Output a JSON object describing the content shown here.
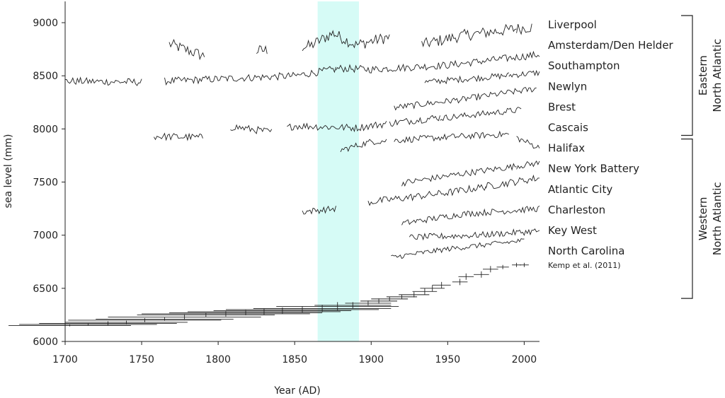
{
  "chart_data": {
    "type": "line",
    "xlabel": "Year (AD)",
    "ylabel": "sea level (mm)",
    "xlim": [
      1700,
      2010
    ],
    "ylim": [
      6000,
      9200
    ],
    "x_ticks": [
      1700,
      1750,
      1800,
      1850,
      1900,
      1950,
      2000
    ],
    "y_ticks": [
      6000,
      6500,
      7000,
      7500,
      8000,
      8500,
      9000
    ],
    "highlight": {
      "x_start": 1865,
      "x_end": 1892,
      "color": "#d6fbf6"
    },
    "line_color": "#222222",
    "series": [
      {
        "name": "Liverpool",
        "level": 8760,
        "amp": 55,
        "segments": [
          [
            1768,
            1791
          ],
          [
            1825,
            1832
          ],
          [
            1855,
            1876
          ],
          [
            1876,
            1912
          ],
          [
            1933,
            1995
          ],
          [
            1995,
            2005
          ]
        ],
        "trend": [
          [
            1768,
            8800
          ],
          [
            1790,
            8690
          ],
          [
            1830,
            8740
          ],
          [
            1860,
            8780
          ],
          [
            1875,
            8900
          ],
          [
            1890,
            8790
          ],
          [
            1910,
            8860
          ],
          [
            1935,
            8800
          ],
          [
            1960,
            8880
          ],
          [
            2005,
            8960
          ]
        ]
      },
      {
        "name": "Amsterdam/Den Helder",
        "level": 8560,
        "amp": 35,
        "segments": [
          [
            1700,
            1750
          ],
          [
            1765,
            1877
          ],
          [
            1877,
            2010
          ]
        ],
        "trend": [
          [
            1700,
            8450
          ],
          [
            1750,
            8440
          ],
          [
            1800,
            8470
          ],
          [
            1850,
            8500
          ],
          [
            1880,
            8570
          ],
          [
            1900,
            8560
          ],
          [
            1950,
            8600
          ],
          [
            2010,
            8700
          ]
        ]
      },
      {
        "name": "Southampton",
        "level": 8440,
        "amp": 30,
        "segments": [
          [
            1935,
            1990
          ],
          [
            1990,
            2010
          ]
        ],
        "trend": [
          [
            1935,
            8440
          ],
          [
            1970,
            8480
          ],
          [
            2010,
            8530
          ]
        ]
      },
      {
        "name": "Newlyn",
        "level": 8290,
        "amp": 30,
        "segments": [
          [
            1915,
            1960
          ],
          [
            1960,
            2008
          ]
        ],
        "trend": [
          [
            1915,
            8200
          ],
          [
            1960,
            8280
          ],
          [
            2008,
            8380
          ]
        ]
      },
      {
        "name": "Brest",
        "level": 8120,
        "amp": 35,
        "segments": [
          [
            1758,
            1790
          ],
          [
            1808,
            1835
          ],
          [
            1845,
            1910
          ],
          [
            1912,
            1945
          ]
        ],
        "trend": [
          [
            1758,
            7930
          ],
          [
            1790,
            7920
          ],
          [
            1810,
            8020
          ],
          [
            1835,
            7970
          ],
          [
            1850,
            8030
          ],
          [
            1890,
            8010
          ],
          [
            1910,
            8050
          ],
          [
            1945,
            8110
          ]
        ]
      },
      {
        "name": "Cascais",
        "level": 8000,
        "amp": 30,
        "segments": [
          [
            1945,
            1998
          ]
        ],
        "trend": [
          [
            1945,
            8100
          ],
          [
            1998,
            8180
          ]
        ]
      },
      {
        "name": "Halifax",
        "level": 7900,
        "amp": 30,
        "segments": [
          [
            1880,
            1910
          ],
          [
            1915,
            1958
          ],
          [
            1958,
            1990
          ],
          [
            1995,
            2010
          ]
        ],
        "trend": [
          [
            1880,
            7800
          ],
          [
            1900,
            7880
          ],
          [
            1958,
            7930
          ],
          [
            1990,
            7950
          ],
          [
            2010,
            7820
          ]
        ]
      },
      {
        "name": "New York Battery",
        "level": 7560,
        "amp": 30,
        "segments": [
          [
            1920,
            1995
          ],
          [
            1995,
            2010
          ]
        ],
        "trend": [
          [
            1920,
            7490
          ],
          [
            1960,
            7580
          ],
          [
            2010,
            7680
          ]
        ]
      },
      {
        "name": "Atlantic City",
        "level": 7420,
        "amp": 35,
        "segments": [
          [
            1898,
            1975
          ],
          [
            1975,
            2010
          ]
        ],
        "trend": [
          [
            1898,
            7310
          ],
          [
            1950,
            7400
          ],
          [
            2010,
            7540
          ]
        ]
      },
      {
        "name": "Charleston",
        "level": 7200,
        "amp": 30,
        "segments": [
          [
            1855,
            1877
          ],
          [
            1920,
            2010
          ]
        ],
        "trend": [
          [
            1855,
            7220
          ],
          [
            1877,
            7250
          ],
          [
            1920,
            7110
          ],
          [
            1960,
            7200
          ],
          [
            2010,
            7250
          ]
        ]
      },
      {
        "name": "Key West",
        "level": 7030,
        "amp": 30,
        "segments": [
          [
            1925,
            2010
          ]
        ],
        "trend": [
          [
            1925,
            6980
          ],
          [
            1970,
            7000
          ],
          [
            2010,
            7040
          ]
        ]
      },
      {
        "name": "North Carolina",
        "level": 6800,
        "amp": 25,
        "segments": [
          [
            1913,
            2000
          ]
        ],
        "trend": [
          [
            1913,
            6790
          ],
          [
            1950,
            6870
          ],
          [
            2000,
            6950
          ]
        ]
      }
    ],
    "proxy_series": {
      "name": "North Carolina",
      "source": "Kemp et al. (2011)",
      "points": [
        [
          1703,
          6150,
          40,
          8
        ],
        [
          1715,
          6160,
          45,
          10
        ],
        [
          1728,
          6170,
          45,
          20
        ],
        [
          1740,
          6180,
          40,
          15
        ],
        [
          1752,
          6200,
          50,
          20
        ],
        [
          1765,
          6210,
          45,
          15
        ],
        [
          1778,
          6230,
          50,
          25
        ],
        [
          1792,
          6250,
          45,
          20
        ],
        [
          1805,
          6260,
          55,
          25
        ],
        [
          1818,
          6270,
          50,
          25
        ],
        [
          1830,
          6280,
          50,
          30
        ],
        [
          1842,
          6290,
          45,
          30
        ],
        [
          1855,
          6300,
          50,
          30
        ],
        [
          1868,
          6310,
          45,
          35
        ],
        [
          1878,
          6330,
          40,
          40
        ],
        [
          1888,
          6340,
          25,
          30
        ],
        [
          1898,
          6360,
          15,
          25
        ],
        [
          1905,
          6380,
          12,
          25
        ],
        [
          1912,
          6400,
          12,
          20
        ],
        [
          1920,
          6420,
          10,
          20
        ],
        [
          1928,
          6440,
          10,
          25
        ],
        [
          1935,
          6470,
          8,
          30
        ],
        [
          1940,
          6500,
          8,
          30
        ],
        [
          1946,
          6530,
          6,
          30
        ],
        [
          1958,
          6560,
          5,
          30
        ],
        [
          1962,
          6610,
          5,
          30
        ],
        [
          1972,
          6630,
          5,
          30
        ],
        [
          1978,
          6680,
          5,
          30
        ],
        [
          1986,
          6700,
          4,
          20
        ],
        [
          1995,
          6720,
          3,
          20
        ],
        [
          2000,
          6720,
          3,
          20
        ]
      ]
    },
    "groups": [
      {
        "label": "Eastern North Atlantic",
        "line1": "Eastern",
        "line2": "North Atlantic",
        "from": "Liverpool",
        "to": "Cascais"
      },
      {
        "label": "Western North Atlantic",
        "line1": "Western",
        "line2": "North Atlantic",
        "from": "Halifax",
        "to": "North Carolina"
      }
    ]
  }
}
